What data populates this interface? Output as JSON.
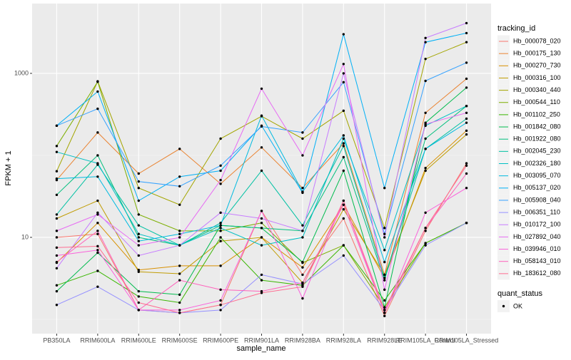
{
  "chart_data": {
    "type": "line",
    "x_label": "sample_name",
    "y_label": "FPKM + 1",
    "log_y": true,
    "ylim": [
      0.67,
      7100
    ],
    "yticks": [
      10,
      1000
    ],
    "yminor": [
      1,
      100
    ],
    "grid": true,
    "legend_position": "right",
    "legend_title": "tracking_id",
    "point_color": "#000000",
    "status_legend": {
      "title": "quant_status",
      "labels": [
        "OK"
      ]
    },
    "categories": [
      "PB350LA",
      "RRIM600LA",
      "RRIM600LE",
      "RRIM600SE",
      "RRIM600PE",
      "RRIM901LA",
      "RRIM928BA",
      "RRIM928LA",
      "RRIM928LE",
      "RRIM105LA_Control",
      "RRIM105LA_Stressed"
    ],
    "series": [
      {
        "name": "Hb_000078_020",
        "color": "#F8766D",
        "values": [
          10,
          11,
          1.3,
          1.2,
          1.5,
          21,
          3.5,
          17,
          1.1,
          12,
          80
        ]
      },
      {
        "name": "Hb_000175_130",
        "color": "#EA8331",
        "values": [
          50,
          190,
          60,
          120,
          45,
          125,
          40,
          140,
          3.5,
          330,
          860
        ]
      },
      {
        "name": "Hb_000270_730",
        "color": "#D89000",
        "values": [
          4.9,
          15,
          4,
          4.5,
          4.5,
          10,
          4.3,
          25,
          3.2,
          70,
          200
        ]
      },
      {
        "name": "Hb_000316_100",
        "color": "#C09B00",
        "values": [
          17,
          28,
          3.8,
          3.6,
          9,
          10,
          2.8,
          22,
          3.5,
          65,
          180
        ]
      },
      {
        "name": "Hb_000340_440",
        "color": "#A3A500",
        "values": [
          64,
          800,
          40,
          25,
          160,
          300,
          160,
          350,
          13,
          1500,
          2400
        ]
      },
      {
        "name": "Hb_000544_110",
        "color": "#7CAE00",
        "values": [
          130,
          790,
          19,
          12,
          12,
          15,
          4.9,
          8,
          1.4,
          8.5,
          15
        ]
      },
      {
        "name": "Hb_001102_250",
        "color": "#39B600",
        "values": [
          2.6,
          3.9,
          1.9,
          1.6,
          10,
          3,
          2.6,
          8,
          1.7,
          8.5,
          15
        ]
      },
      {
        "name": "Hb_001842_080",
        "color": "#00BB4E",
        "values": [
          2.2,
          6.5,
          2.2,
          2,
          14,
          13,
          5,
          65,
          1.4,
          250,
          670
        ]
      },
      {
        "name": "Hb_001922_080",
        "color": "#00BF7D",
        "values": [
          33,
          100,
          10,
          8,
          14,
          13,
          12,
          95,
          3,
          160,
          400
        ]
      },
      {
        "name": "Hb_002045_230",
        "color": "#00C1A3",
        "values": [
          19,
          77,
          14,
          8,
          15,
          65,
          14,
          130,
          3.2,
          120,
          280
        ]
      },
      {
        "name": "Hb_002326_180",
        "color": "#00BFC4",
        "values": [
          110,
          80,
          11,
          8,
          13,
          8,
          10,
          160,
          7,
          230,
          400
        ]
      },
      {
        "name": "Hb_003095_070",
        "color": "#00BAE0",
        "values": [
          52,
          55,
          9,
          11,
          14,
          305,
          36,
          175,
          5,
          120,
          250
        ]
      },
      {
        "name": "Hb_005137_020",
        "color": "#00B0F6",
        "values": [
          230,
          600,
          28,
          55,
          65,
          230,
          35,
          3000,
          40,
          2400,
          3100
        ]
      },
      {
        "name": "Hb_005908_040",
        "color": "#35A2FF",
        "values": [
          230,
          370,
          48,
          42,
          75,
          225,
          190,
          780,
          11,
          810,
          1350
        ]
      },
      {
        "name": "Hb_006351_110",
        "color": "#9590FF",
        "values": [
          1.5,
          2.5,
          1.3,
          1.2,
          1.3,
          3.5,
          2.7,
          6,
          1.3,
          8,
          15
        ]
      },
      {
        "name": "Hb_010172_100",
        "color": "#C77CFF",
        "values": [
          4.2,
          20,
          6,
          8,
          20,
          17,
          12,
          1000,
          10,
          2700,
          4100
        ]
      },
      {
        "name": "Hb_027892_040",
        "color": "#E76BF3",
        "values": [
          12,
          19,
          8,
          10,
          50,
          650,
          100,
          1300,
          2.3,
          240,
          330
        ]
      },
      {
        "name": "Hb_039946_010",
        "color": "#FA62DB",
        "values": [
          6,
          7,
          1.3,
          1.3,
          1.7,
          21,
          1.8,
          28,
          1.2,
          20,
          40
        ]
      },
      {
        "name": "Hb_058143_010",
        "color": "#FF62BC",
        "values": [
          5,
          12,
          1.3,
          3,
          2.3,
          2.2,
          2.8,
          25,
          1.2,
          13,
          60
        ]
      },
      {
        "name": "Hb_183612_080",
        "color": "#FF6C91",
        "values": [
          7.5,
          7.8,
          1.6,
          1.2,
          1.5,
          2.1,
          2.5,
          28,
          1.3,
          13,
          75
        ]
      }
    ]
  }
}
